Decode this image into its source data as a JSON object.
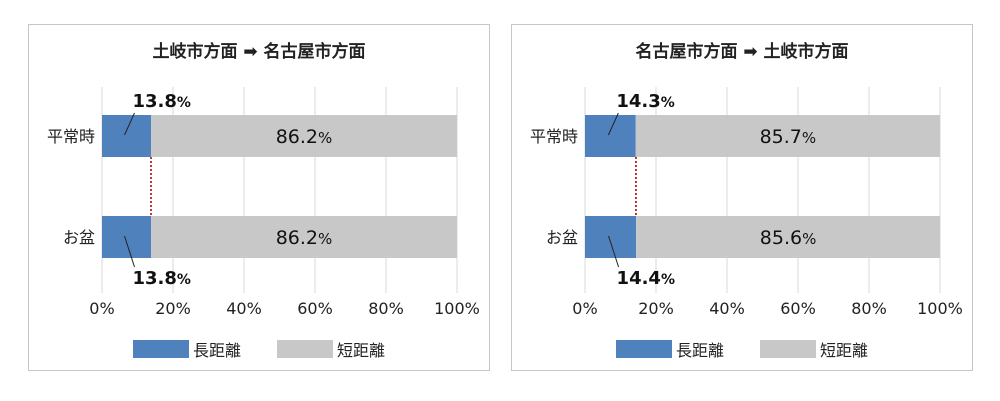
{
  "colors": {
    "long": "#4f81bd",
    "short": "#c8c8c8",
    "connector": "#c00000",
    "grid": "#d9d9d9"
  },
  "chart_data": [
    {
      "type": "bar",
      "orientation": "horizontal-stacked-100",
      "title": "土岐市方面 ➡ 名古屋市方面",
      "categories": [
        "平常時",
        "お盆"
      ],
      "series": [
        {
          "name": "長距離",
          "values": [
            13.8,
            13.8
          ]
        },
        {
          "name": "短距離",
          "values": [
            86.2,
            86.2
          ]
        }
      ],
      "value_labels": {
        "long": [
          [
            "13.8",
            "%"
          ],
          [
            "13.8",
            "%"
          ]
        ],
        "short": [
          [
            "86.2",
            "%"
          ],
          [
            "86.2",
            "%"
          ]
        ]
      },
      "xlim": [
        0,
        100
      ],
      "xticks": [
        "0%",
        "20%",
        "40%",
        "60%",
        "80%",
        "100%"
      ],
      "grid": true,
      "legend": "bottom"
    },
    {
      "type": "bar",
      "orientation": "horizontal-stacked-100",
      "title": "名古屋市方面 ➡ 土岐市方面",
      "categories": [
        "平常時",
        "お盆"
      ],
      "series": [
        {
          "name": "長距離",
          "values": [
            14.3,
            14.4
          ]
        },
        {
          "name": "短距離",
          "values": [
            85.7,
            85.6
          ]
        }
      ],
      "value_labels": {
        "long": [
          [
            "14.3",
            "%"
          ],
          [
            "14.4",
            "%"
          ]
        ],
        "short": [
          [
            "85.7",
            "%"
          ],
          [
            "85.6",
            "%"
          ]
        ]
      },
      "xlim": [
        0,
        100
      ],
      "xticks": [
        "0%",
        "20%",
        "40%",
        "60%",
        "80%",
        "100%"
      ],
      "grid": true,
      "legend": "bottom"
    }
  ]
}
